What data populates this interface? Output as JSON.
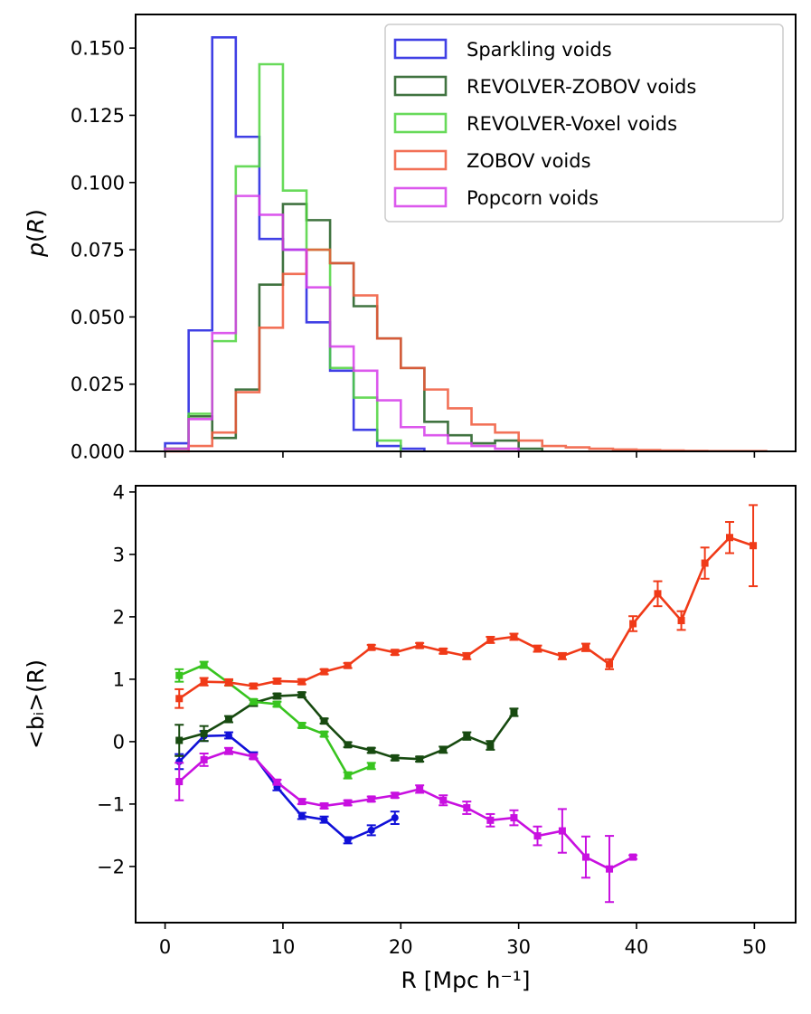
{
  "chart_data": [
    {
      "type": "histogram",
      "ylabel": "p(R)",
      "xlim": [
        -2.5,
        53.5
      ],
      "ylim": [
        0,
        0.1625
      ],
      "yticks": [
        "0.000",
        "0.025",
        "0.050",
        "0.075",
        "0.100",
        "0.125",
        "0.150"
      ],
      "bin_edges": [
        0,
        2,
        4,
        6,
        8,
        10,
        12,
        14,
        16,
        18,
        20,
        22,
        24,
        26,
        28,
        30,
        32,
        34,
        36,
        38,
        40,
        42,
        44,
        46,
        48,
        50,
        51
      ],
      "legend_position": "top-right",
      "series": [
        {
          "name": "Sparkling voids",
          "color": "#1f1fe0",
          "values": [
            0.003,
            0.045,
            0.154,
            0.117,
            0.079,
            0.075,
            0.048,
            0.03,
            0.008,
            0.002,
            0.001
          ]
        },
        {
          "name": "REVOLVER-ZOBOV voids",
          "color": "#1f5a1f",
          "values": [
            0.001,
            0.013,
            0.005,
            0.023,
            0.062,
            0.092,
            0.086,
            0.07,
            0.054,
            0.042,
            0.031,
            0.011,
            0.006,
            0.003,
            0.004,
            0.001
          ]
        },
        {
          "name": "REVOLVER-Voxel voids",
          "color": "#4dd43d",
          "values": [
            0.001,
            0.014,
            0.041,
            0.106,
            0.144,
            0.097,
            0.075,
            0.031,
            0.02,
            0.004
          ]
        },
        {
          "name": "ZOBOV voids",
          "color": "#f0583a",
          "values": [
            0.0,
            0.002,
            0.007,
            0.022,
            0.046,
            0.066,
            0.075,
            0.07,
            0.058,
            0.042,
            0.031,
            0.023,
            0.016,
            0.01,
            0.007,
            0.004,
            0.002,
            0.0015,
            0.001,
            0.0007,
            0.0005,
            0.0003,
            0.0002,
            0.0001,
            0.0001,
            0.0001
          ]
        },
        {
          "name": "Popcorn voids",
          "color": "#d63cea",
          "values": [
            0.001,
            0.012,
            0.044,
            0.095,
            0.088,
            0.075,
            0.061,
            0.039,
            0.03,
            0.019,
            0.009,
            0.006,
            0.003,
            0.002,
            0.001
          ]
        }
      ]
    },
    {
      "type": "line",
      "xlabel": "R [Mpc h⁻¹]",
      "ylabel": "<bᵢ>(R)",
      "xlim": [
        -2.5,
        53.5
      ],
      "ylim": [
        -2.9,
        4.1
      ],
      "xticks": [
        "0",
        "10",
        "20",
        "30",
        "40",
        "50"
      ],
      "yticks": [
        "−2",
        "−1",
        "0",
        "1",
        "2",
        "3",
        "4"
      ],
      "series": [
        {
          "color": "#1010d8",
          "marker": "circle",
          "x": [
            1.2,
            3.3,
            5.4,
            7.5,
            9.5,
            11.6,
            13.5,
            15.5,
            17.5,
            19.5
          ],
          "y": [
            -0.32,
            0.09,
            0.1,
            -0.22,
            -0.73,
            -1.19,
            -1.25,
            -1.58,
            -1.42,
            -1.22
          ],
          "err": [
            0.12,
            0.08,
            0.05,
            0.05,
            0.05,
            0.05,
            0.05,
            0.05,
            0.08,
            0.1
          ]
        },
        {
          "color": "#174a10",
          "marker": "square",
          "x": [
            1.2,
            3.3,
            5.4,
            7.5,
            9.5,
            11.6,
            13.5,
            15.5,
            17.5,
            19.5,
            21.6,
            23.6,
            25.6,
            27.6,
            29.6
          ],
          "y": [
            0.02,
            0.13,
            0.36,
            0.62,
            0.73,
            0.75,
            0.33,
            -0.05,
            -0.14,
            -0.26,
            -0.28,
            -0.13,
            0.09,
            -0.06,
            0.47
          ],
          "err": [
            0.25,
            0.12,
            0.05,
            0.05,
            0.04,
            0.04,
            0.04,
            0.04,
            0.04,
            0.04,
            0.04,
            0.05,
            0.06,
            0.07,
            0.06
          ]
        },
        {
          "color": "#38c41f",
          "marker": "square",
          "x": [
            1.2,
            3.3,
            5.4,
            7.5,
            9.5,
            11.6,
            13.5,
            15.5,
            17.5
          ],
          "y": [
            1.06,
            1.23,
            0.94,
            0.64,
            0.6,
            0.26,
            0.12,
            -0.54,
            -0.39
          ],
          "err": [
            0.1,
            0.05,
            0.04,
            0.04,
            0.04,
            0.04,
            0.04,
            0.05,
            0.05
          ]
        },
        {
          "color": "#f03a18",
          "marker": "square",
          "x": [
            1.2,
            3.3,
            5.4,
            7.5,
            9.5,
            11.6,
            13.5,
            15.5,
            17.5,
            19.5,
            21.6,
            23.6,
            25.6,
            27.6,
            29.6,
            31.6,
            33.7,
            35.7,
            37.7,
            39.7,
            41.8,
            43.8,
            45.8,
            47.9,
            49.9
          ],
          "y": [
            0.69,
            0.96,
            0.95,
            0.89,
            0.97,
            0.96,
            1.12,
            1.22,
            1.51,
            1.43,
            1.54,
            1.45,
            1.37,
            1.63,
            1.68,
            1.49,
            1.37,
            1.51,
            1.24,
            1.89,
            2.37,
            1.94,
            2.86,
            3.27,
            3.14
          ],
          "err": [
            0.15,
            0.06,
            0.05,
            0.04,
            0.04,
            0.04,
            0.04,
            0.04,
            0.04,
            0.04,
            0.04,
            0.04,
            0.05,
            0.05,
            0.05,
            0.05,
            0.05,
            0.06,
            0.08,
            0.12,
            0.2,
            0.15,
            0.25,
            0.25,
            0.65
          ]
        },
        {
          "color": "#c810e0",
          "marker": "square",
          "x": [
            1.2,
            3.3,
            5.4,
            7.5,
            9.5,
            11.6,
            13.5,
            15.5,
            17.5,
            19.5,
            21.6,
            23.6,
            25.6,
            27.6,
            29.6,
            31.6,
            33.7,
            35.7,
            37.7,
            39.7
          ],
          "y": [
            -0.64,
            -0.29,
            -0.15,
            -0.24,
            -0.65,
            -0.96,
            -1.03,
            -0.98,
            -0.92,
            -0.86,
            -0.76,
            -0.94,
            -1.06,
            -1.26,
            -1.22,
            -1.51,
            -1.43,
            -1.85,
            -2.04,
            -1.85
          ],
          "err": [
            0.3,
            0.1,
            0.05,
            0.04,
            0.04,
            0.04,
            0.04,
            0.04,
            0.04,
            0.04,
            0.06,
            0.08,
            0.1,
            0.1,
            0.12,
            0.15,
            0.35,
            0.33,
            0.53,
            0.03
          ]
        }
      ]
    }
  ]
}
